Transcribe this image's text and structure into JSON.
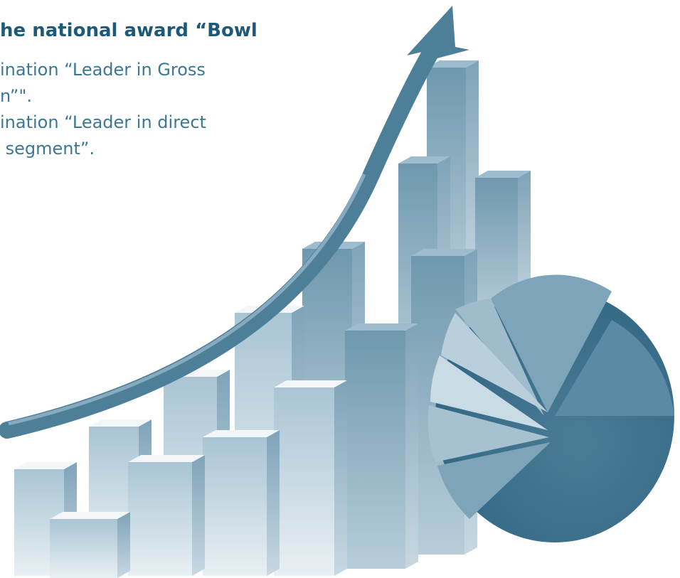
{
  "header": {
    "title": "he national award “Bowl"
  },
  "body": {
    "lines": [
      "ination “Leader in Gross",
      "n”\".",
      "ination “Leader in direct",
      " segment”."
    ]
  }
}
